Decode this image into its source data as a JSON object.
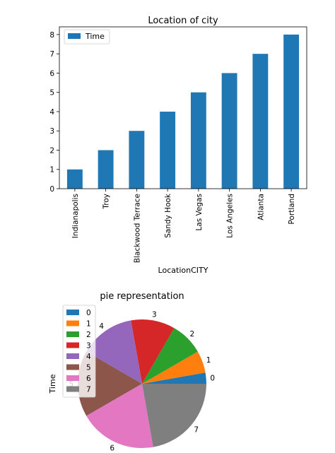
{
  "chart_data": [
    {
      "type": "bar",
      "title": "Location of city",
      "xlabel": "LocationCITY",
      "ylabel": "",
      "categories": [
        "Indianapolis",
        "Troy",
        "Blackwood Terrace",
        "Sandy Hook",
        "Las Vegas",
        "Los Angeles",
        "Atlanta",
        "Portland"
      ],
      "series": [
        {
          "name": "Time",
          "values": [
            1,
            2,
            3,
            4,
            5,
            6,
            7,
            8
          ]
        }
      ],
      "ylim": [
        0,
        8.4
      ],
      "yticks": [
        "0",
        "1",
        "2",
        "3",
        "4",
        "5",
        "6",
        "7",
        "8"
      ],
      "legend_position": "top-left",
      "grid": false,
      "colors": {
        "bar": "#1f77b4"
      }
    },
    {
      "type": "pie",
      "title": "pie representation",
      "ylabel": "Time",
      "labels": [
        "0",
        "1",
        "2",
        "3",
        "4",
        "5",
        "6",
        "7"
      ],
      "values": [
        1,
        2,
        3,
        4,
        5,
        6,
        7,
        8
      ],
      "legend_position": "top-left",
      "start_angle_deg": 0,
      "direction": "counterclockwise",
      "colors": [
        "#1f77b4",
        "#ff7f0e",
        "#2ca02c",
        "#d62728",
        "#9467bd",
        "#8c564b",
        "#e377c2",
        "#7f7f7f"
      ]
    }
  ]
}
